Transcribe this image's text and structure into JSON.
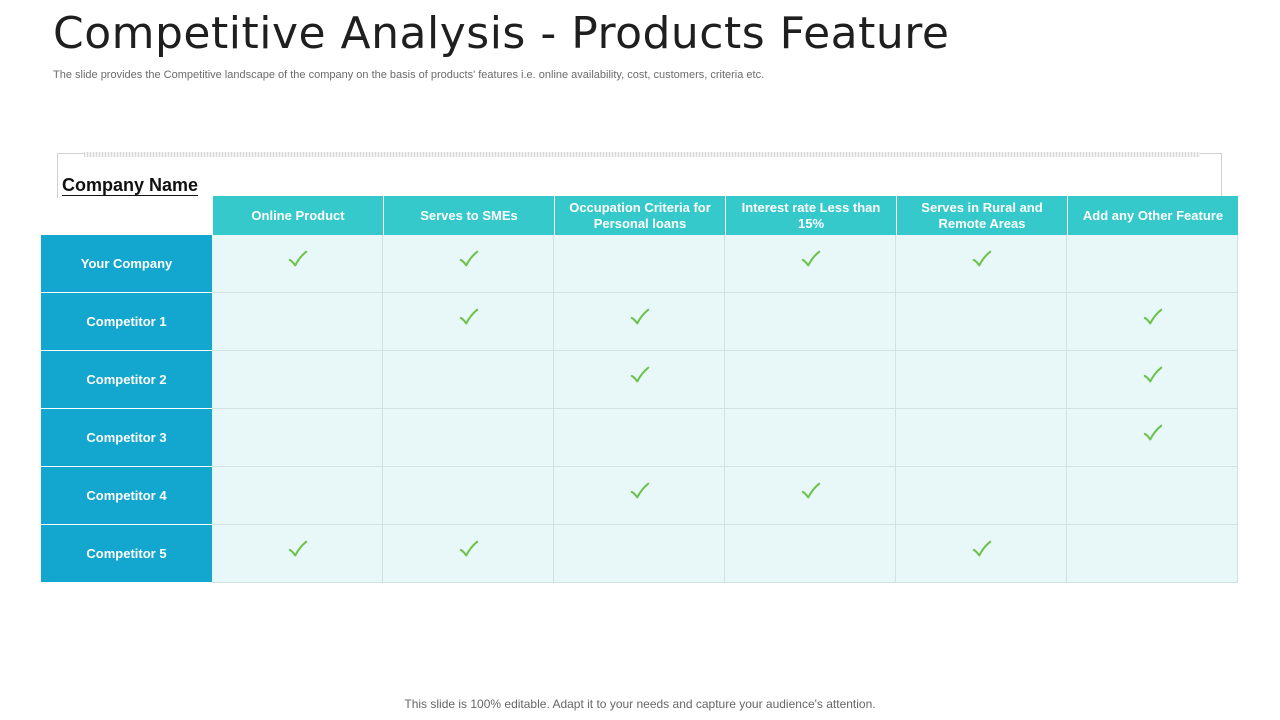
{
  "slide": {
    "title": "Competitive Analysis - Products Feature",
    "subtitle": "The slide provides the Competitive landscape of the company  on the basis of products' features i.e. online availability, cost, customers, criteria etc.",
    "footer": "This slide is 100% editable. Adapt it to your needs and capture your audience's attention."
  },
  "table": {
    "corner_label": "Company Name",
    "columns": [
      "Online Product",
      "Serves to SMEs",
      "Occupation Criteria for Personal loans",
      "Interest rate Less than 15%",
      "Serves in Rural and Remote Areas",
      "Add any Other Feature"
    ],
    "rows": [
      {
        "label": "Your Company",
        "checks": [
          true,
          true,
          false,
          true,
          true,
          false
        ]
      },
      {
        "label": "Competitor 1",
        "checks": [
          false,
          true,
          true,
          false,
          false,
          true
        ]
      },
      {
        "label": "Competitor 2",
        "checks": [
          false,
          false,
          true,
          false,
          false,
          true
        ]
      },
      {
        "label": "Competitor 3",
        "checks": [
          false,
          false,
          false,
          false,
          false,
          true
        ]
      },
      {
        "label": "Competitor 4",
        "checks": [
          false,
          false,
          true,
          true,
          false,
          false
        ]
      },
      {
        "label": "Competitor 5",
        "checks": [
          true,
          true,
          false,
          false,
          true,
          false
        ]
      }
    ]
  },
  "colors": {
    "header": "#35c9cb",
    "row_label": "#13a7cf",
    "cell": "#e8f8f8",
    "check": "#6cc24a"
  }
}
